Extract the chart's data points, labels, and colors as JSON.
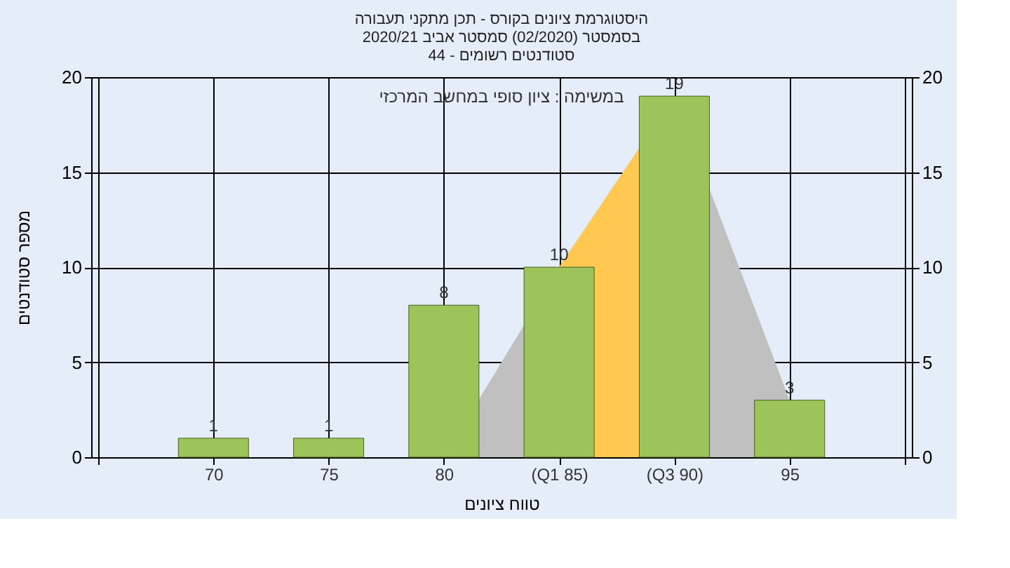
{
  "chart_data": {
    "type": "bar",
    "title": [
      "היסטוגרמת ציונים בקורס - תכן מתקני תעבורה",
      "בסמסטר  (02/2020)  סמסטר אביב 2020/21",
      "סטודנטים רשומים - 44"
    ],
    "xlabel": "טווח ציונים",
    "ylabel": "מספר סטודנטים",
    "annotations": [
      "במשימה : ציון סופי במחשב המרכזי"
    ],
    "categories": [
      null,
      "70",
      "75",
      "80",
      "(Q1 85)",
      "(Q3 90)",
      "95",
      null
    ],
    "series": [
      {
        "type": "area",
        "color": "#c0c0c0",
        "values": [
          null,
          null,
          null,
          0,
          10,
          19,
          3,
          null
        ]
      },
      {
        "type": "area",
        "color": "#ffc850",
        "values": [
          null,
          null,
          null,
          null,
          10,
          19,
          null,
          null
        ]
      },
      {
        "color": "#9dc45a",
        "values": [
          null,
          1,
          1,
          8,
          10,
          19,
          3,
          null
        ],
        "data_labels": true
      }
    ],
    "ylim": [
      0,
      20
    ],
    "yticks": [
      0,
      5,
      10,
      15,
      20
    ],
    "y2lim": [
      0,
      20
    ],
    "y2ticks": [
      0,
      5,
      10,
      15,
      20
    ],
    "grid": true
  }
}
